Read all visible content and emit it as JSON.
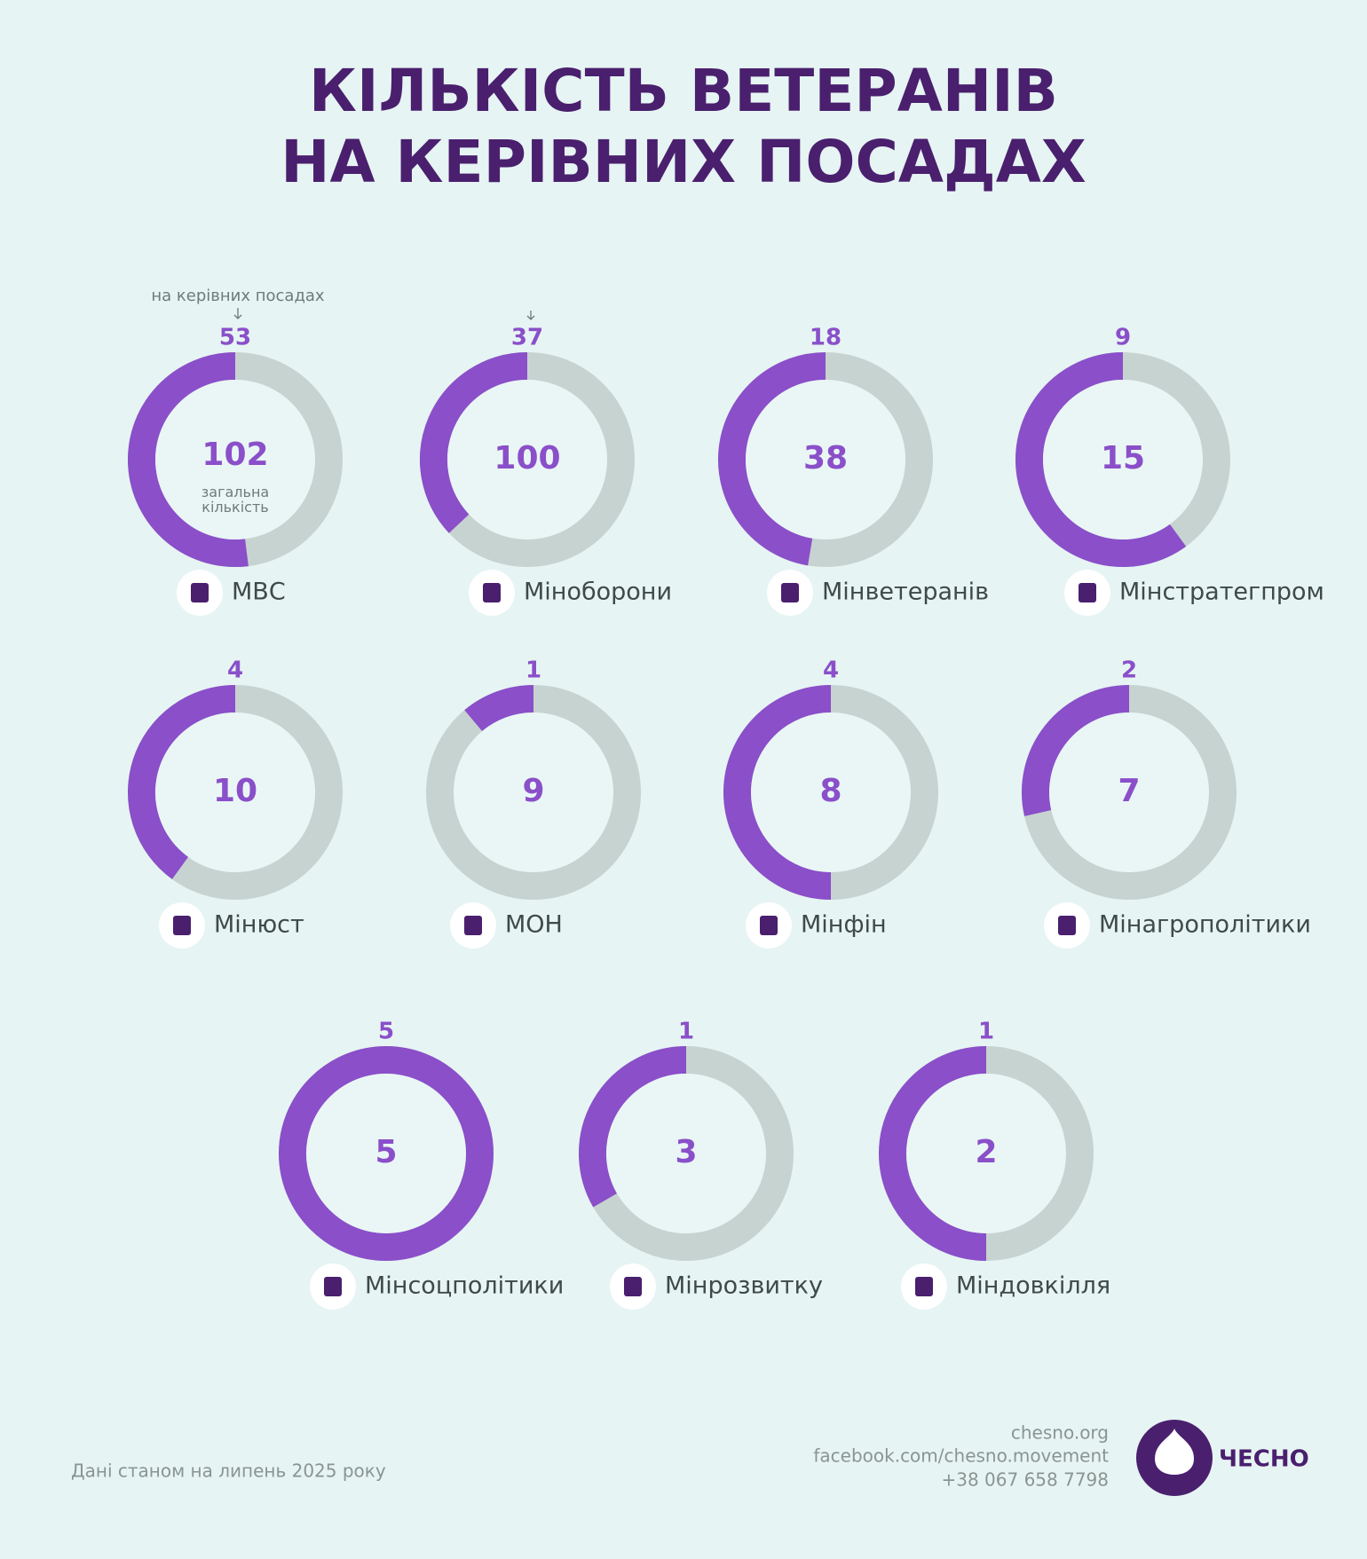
{
  "chart_data": {
    "type": "donut",
    "title": [
      "КІЛЬКІСТЬ ВЕТЕРАНІВ",
      "НА КЕРІВНИХ ПОСАДАХ"
    ],
    "categories": [
      "МВС",
      "Міноборони",
      "Мінветеранів",
      "Мінстратегпром",
      "Мінюст",
      "МОН",
      "Мінфін",
      "Мінагрополітики",
      "Мінсоцполітики",
      "Мінрозвитку",
      "Міндовкілля"
    ],
    "series": [
      {
        "name": "на керівних посадах",
        "color": "#8a4fc9",
        "values": [
          53,
          37,
          18,
          9,
          4,
          1,
          4,
          2,
          5,
          1,
          1
        ]
      },
      {
        "name": "загальна кількість",
        "color": "#c7d3d0",
        "values": [
          102,
          100,
          38,
          15,
          10,
          9,
          8,
          7,
          5,
          3,
          2
        ]
      }
    ],
    "note": "Дані станом на липень 2025 року",
    "contacts": [
      "chesno.org",
      "facebook.com/chesno.movement",
      "+38 067 658 7798"
    ],
    "logo": "ЧЕСНО"
  }
}
